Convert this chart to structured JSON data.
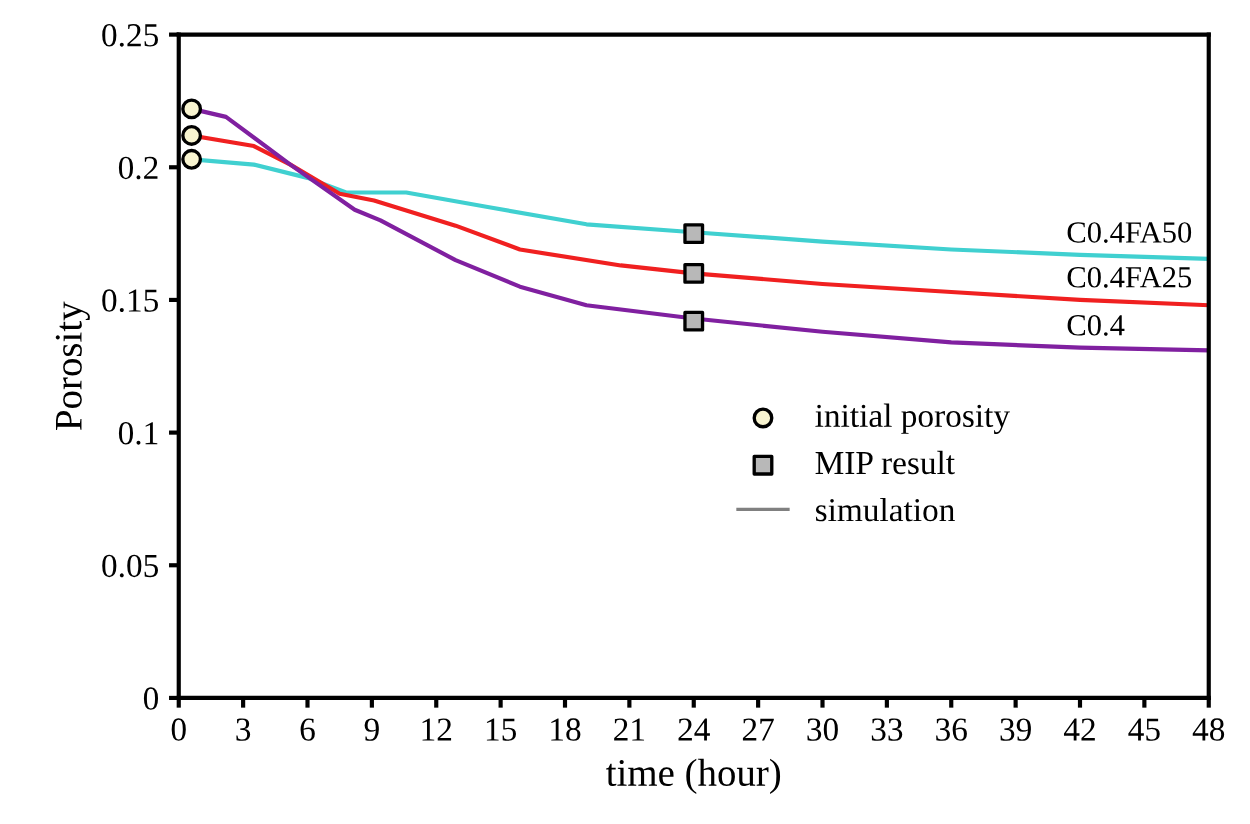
{
  "chart_data": {
    "type": "line",
    "xlabel": "time (hour)",
    "ylabel": "Porosity",
    "xlim": [
      0,
      48
    ],
    "ylim": [
      0,
      0.25
    ],
    "xticks": [
      0,
      3,
      6,
      9,
      12,
      15,
      18,
      21,
      24,
      27,
      30,
      33,
      36,
      39,
      42,
      45,
      48
    ],
    "yticks": [
      0,
      0.05,
      0.1,
      0.15,
      0.2,
      0.25
    ],
    "grid": false,
    "legend": "right",
    "marker": "none",
    "line_style": "solid",
    "series": [
      {
        "name": "C0.4FA50",
        "color": "#40d0d0",
        "x": [
          0.6,
          3.5,
          6,
          7.8,
          10.6,
          14.4,
          19,
          24,
          30,
          36,
          42,
          48
        ],
        "values": [
          0.203,
          0.201,
          0.196,
          0.1905,
          0.1905,
          0.185,
          0.1785,
          0.1755,
          0.172,
          0.169,
          0.167,
          0.1655
        ]
      },
      {
        "name": "C0.4FA25",
        "color": "#f02020",
        "x": [
          0.6,
          3.5,
          5.2,
          7.5,
          9.1,
          12.9,
          15.9,
          20.6,
          24,
          30,
          36,
          42,
          48
        ],
        "values": [
          0.212,
          0.208,
          0.201,
          0.19,
          0.1875,
          0.178,
          0.169,
          0.163,
          0.16,
          0.156,
          0.153,
          0.15,
          0.148
        ]
      },
      {
        "name": "C0.4",
        "color": "#8020a0",
        "x": [
          0.6,
          2.2,
          5.2,
          8.2,
          9.4,
          12.9,
          15.9,
          19,
          24,
          30,
          36,
          42,
          48
        ],
        "values": [
          0.222,
          0.219,
          0.201,
          0.184,
          0.18,
          0.165,
          0.155,
          0.148,
          0.143,
          0.138,
          0.134,
          0.132,
          0.131
        ]
      },
      {
        "name": "initial porosity",
        "type": "scatter",
        "marker": "circle",
        "color": "#f8f4d0",
        "x": [
          0.6,
          0.6,
          0.6
        ],
        "values": [
          0.222,
          0.212,
          0.203
        ]
      },
      {
        "name": "MIP result",
        "type": "scatter",
        "marker": "square",
        "color": "#b8b8b8",
        "x": [
          24,
          24,
          24
        ],
        "values": [
          0.175,
          0.16,
          0.142
        ]
      }
    ],
    "annotations": [
      "simulation"
    ]
  }
}
